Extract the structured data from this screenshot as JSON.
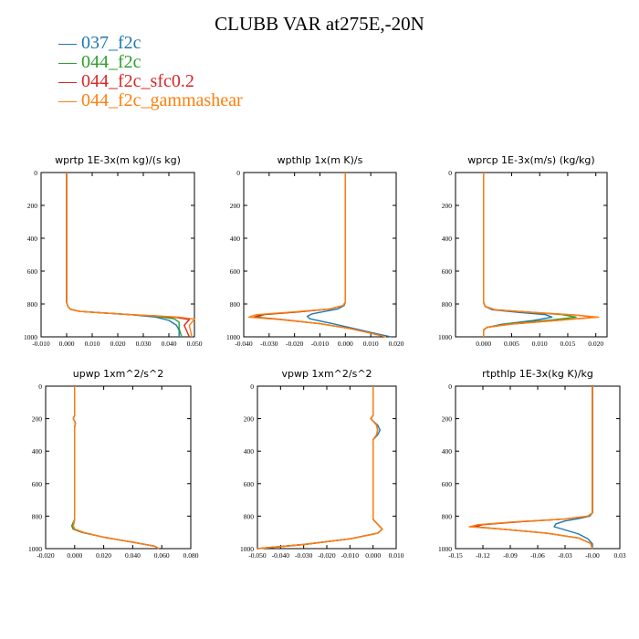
{
  "figure_title": "CLUBB VAR at275E,-20N",
  "legend": [
    {
      "label": "037_f2c",
      "color": "#1f77b4"
    },
    {
      "label": "044_f2c",
      "color": "#2ca02c"
    },
    {
      "label": "044_f2c_sfc0.2",
      "color": "#d62728"
    },
    {
      "label": "044_f2c_gammashear",
      "color": "#ff7f0e"
    }
  ],
  "chart_data": [
    {
      "type": "line",
      "title": "wprtp  1E-3x(m kg)/(s kg)",
      "xlim": [
        -0.01,
        0.05
      ],
      "ylim": [
        1000,
        0
      ],
      "xticks": [
        "-0.010",
        "0.000",
        "0.010",
        "0.020",
        "0.030",
        "0.040",
        "0.050"
      ],
      "xtick_values": [
        -0.01,
        0,
        0.01,
        0.02,
        0.03,
        0.04,
        0.05
      ],
      "yticks": [
        "0",
        "200",
        "400",
        "600",
        "800",
        "1000"
      ],
      "ytick_values": [
        0,
        200,
        400,
        600,
        800,
        1000
      ],
      "series": [
        {
          "name": "037_f2c",
          "color": "#1f77b4",
          "x": [
            0,
            0,
            0.0005,
            0.0015,
            0.005,
            0.015,
            0.025,
            0.035,
            0.04,
            0.043,
            0.044,
            0.044
          ],
          "y": [
            0,
            790,
            815,
            832,
            845,
            855,
            865,
            880,
            900,
            930,
            960,
            1000
          ]
        },
        {
          "name": "044_f2c",
          "color": "#2ca02c",
          "x": [
            0,
            0,
            0.0005,
            0.0015,
            0.005,
            0.015,
            0.025,
            0.035,
            0.042,
            0.044,
            0.044,
            0.045
          ],
          "y": [
            0,
            790,
            815,
            832,
            845,
            855,
            865,
            875,
            890,
            910,
            950,
            1000
          ]
        },
        {
          "name": "044_f2c_sfc0.2",
          "color": "#d62728",
          "x": [
            0,
            0,
            0.0005,
            0.0015,
            0.005,
            0.015,
            0.025,
            0.035,
            0.043,
            0.048,
            0.046,
            0.048
          ],
          "y": [
            0,
            790,
            815,
            832,
            845,
            855,
            865,
            873,
            882,
            895,
            930,
            1000
          ]
        },
        {
          "name": "044_f2c_gammashear",
          "color": "#ff7f0e",
          "x": [
            0,
            0,
            0.0005,
            0.0015,
            0.005,
            0.015,
            0.025,
            0.035,
            0.044,
            0.05,
            0.048,
            0.049
          ],
          "y": [
            0,
            790,
            815,
            832,
            845,
            855,
            865,
            872,
            880,
            892,
            930,
            1000
          ]
        }
      ]
    },
    {
      "type": "line",
      "title": "wpthlp  1x(m K)/s",
      "xlim": [
        -0.04,
        0.02
      ],
      "ylim": [
        1000,
        0
      ],
      "xticks": [
        "-0.040",
        "-0.030",
        "-0.020",
        "-0.010",
        "0.000",
        "0.010",
        "0.020"
      ],
      "xtick_values": [
        -0.04,
        -0.03,
        -0.02,
        -0.01,
        0,
        0.01,
        0.02
      ],
      "yticks": [
        "0",
        "200",
        "400",
        "600",
        "800",
        "1000"
      ],
      "ytick_values": [
        0,
        200,
        400,
        600,
        800,
        1000
      ],
      "series": [
        {
          "name": "037_f2c",
          "color": "#1f77b4",
          "x": [
            0,
            0,
            -0.0005,
            -0.003,
            -0.008,
            -0.013,
            -0.015,
            -0.014,
            -0.005,
            0.005,
            0.012,
            0.018
          ],
          "y": [
            0,
            790,
            810,
            830,
            845,
            860,
            875,
            890,
            920,
            955,
            980,
            1000
          ]
        },
        {
          "name": "044_f2c",
          "color": "#2ca02c",
          "x": [
            0,
            0,
            -0.001,
            -0.006,
            -0.018,
            -0.032,
            -0.035,
            -0.025,
            -0.01,
            0.002,
            0.01,
            0.016
          ],
          "y": [
            0,
            790,
            810,
            830,
            848,
            865,
            880,
            895,
            920,
            950,
            978,
            1000
          ]
        },
        {
          "name": "044_f2c_sfc0.2",
          "color": "#d62728",
          "x": [
            0,
            0,
            -0.001,
            -0.006,
            -0.018,
            -0.033,
            -0.036,
            -0.025,
            -0.01,
            0.002,
            0.01,
            0.016
          ],
          "y": [
            0,
            790,
            810,
            830,
            848,
            865,
            880,
            895,
            920,
            950,
            978,
            1000
          ]
        },
        {
          "name": "044_f2c_gammashear",
          "color": "#ff7f0e",
          "x": [
            0,
            0,
            -0.001,
            -0.006,
            -0.02,
            -0.035,
            -0.038,
            -0.026,
            -0.01,
            0.002,
            0.01,
            0.016
          ],
          "y": [
            0,
            790,
            810,
            830,
            848,
            865,
            880,
            895,
            920,
            950,
            978,
            1000
          ]
        }
      ]
    },
    {
      "type": "line",
      "title": "wprcp  1E-3x(m/s) (kg/kg)",
      "xlim": [
        -0.005,
        0.022
      ],
      "ylim": [
        1000,
        0
      ],
      "xticks": [
        "0.000",
        "0.005",
        "0.010",
        "0.015",
        "0.020"
      ],
      "xtick_values": [
        0,
        0.005,
        0.01,
        0.015,
        0.02
      ],
      "yticks": [
        "0",
        "200",
        "400",
        "600",
        "800",
        "1000"
      ],
      "ytick_values": [
        0,
        200,
        400,
        600,
        800,
        1000
      ],
      "series": [
        {
          "name": "037_f2c",
          "color": "#1f77b4",
          "x": [
            0,
            0,
            0.0003,
            0.0015,
            0.006,
            0.011,
            0.0122,
            0.009,
            0.003,
            0.0005,
            0,
            0
          ],
          "y": [
            0,
            790,
            815,
            835,
            850,
            865,
            880,
            900,
            925,
            945,
            960,
            1000
          ]
        },
        {
          "name": "044_f2c",
          "color": "#2ca02c",
          "x": [
            0,
            0,
            0.0003,
            0.002,
            0.008,
            0.014,
            0.0165,
            0.012,
            0.004,
            0.0006,
            0,
            0
          ],
          "y": [
            0,
            790,
            815,
            835,
            850,
            865,
            880,
            898,
            922,
            942,
            958,
            1000
          ]
        },
        {
          "name": "044_f2c_sfc0.2",
          "color": "#d62728",
          "x": [
            0,
            0,
            0.0003,
            0.002,
            0.008,
            0.016,
            0.02,
            0.014,
            0.005,
            0.0006,
            0,
            0
          ],
          "y": [
            0,
            790,
            815,
            835,
            850,
            866,
            880,
            897,
            922,
            942,
            958,
            1000
          ]
        },
        {
          "name": "044_f2c_gammashear",
          "color": "#ff7f0e",
          "x": [
            0,
            0,
            0.0003,
            0.002,
            0.008,
            0.016,
            0.0205,
            0.014,
            0.005,
            0.0006,
            0,
            0
          ],
          "y": [
            0,
            790,
            815,
            835,
            850,
            866,
            880,
            897,
            922,
            942,
            958,
            1000
          ]
        }
      ]
    },
    {
      "type": "line",
      "title": "upwp  1xm^2/s^2",
      "xlim": [
        -0.02,
        0.08
      ],
      "ylim": [
        1000,
        0
      ],
      "xticks": [
        "-0.020",
        "0.000",
        "0.020",
        "0.040",
        "0.060",
        "0.080"
      ],
      "xtick_values": [
        -0.02,
        0,
        0.02,
        0.04,
        0.06,
        0.08
      ],
      "yticks": [
        "0",
        "200",
        "400",
        "600",
        "800",
        "1000"
      ],
      "ytick_values": [
        0,
        200,
        400,
        600,
        800,
        1000
      ],
      "series": [
        {
          "name": "037_f2c",
          "color": "#1f77b4",
          "x": [
            0,
            0,
            -0.001,
            0,
            0.0005,
            0,
            0,
            -0.002,
            -0.001,
            0.005,
            0.02,
            0.04,
            0.055,
            0.058
          ],
          "y": [
            0,
            180,
            200,
            215,
            230,
            250,
            820,
            860,
            880,
            900,
            930,
            960,
            985,
            1000
          ]
        },
        {
          "name": "044_f2c",
          "color": "#2ca02c",
          "x": [
            0,
            0,
            -0.001,
            0,
            0.0005,
            0,
            0,
            -0.002,
            -0.001,
            0.005,
            0.02,
            0.04,
            0.055,
            0.058
          ],
          "y": [
            0,
            180,
            200,
            215,
            230,
            250,
            820,
            860,
            880,
            900,
            930,
            960,
            985,
            1000
          ]
        },
        {
          "name": "044_f2c_sfc0.2",
          "color": "#d62728",
          "x": [
            0,
            0,
            -0.001,
            0,
            0.0005,
            0,
            0,
            -0.001,
            0,
            0.006,
            0.02,
            0.04,
            0.055,
            0.058
          ],
          "y": [
            0,
            180,
            200,
            215,
            230,
            250,
            820,
            860,
            880,
            900,
            930,
            960,
            985,
            1000
          ]
        },
        {
          "name": "044_f2c_gammashear",
          "color": "#ff7f0e",
          "x": [
            0,
            0,
            -0.001,
            0,
            0.0005,
            0,
            0,
            -0.001,
            0,
            0.006,
            0.02,
            0.04,
            0.055,
            0.058
          ],
          "y": [
            0,
            180,
            200,
            215,
            230,
            250,
            820,
            860,
            880,
            900,
            930,
            960,
            985,
            1000
          ]
        }
      ]
    },
    {
      "type": "line",
      "title": "vpwp  1xm^2/s^2",
      "xlim": [
        -0.05,
        0.01
      ],
      "ylim": [
        1000,
        0
      ],
      "xticks": [
        "-0.050",
        "-0.040",
        "-0.030",
        "-0.020",
        "-0.010",
        "0.000",
        "0.010"
      ],
      "xtick_values": [
        -0.05,
        -0.04,
        -0.03,
        -0.02,
        -0.01,
        0,
        0.01
      ],
      "yticks": [
        "0",
        "200",
        "400",
        "600",
        "800",
        "1000"
      ],
      "ytick_values": [
        0,
        200,
        400,
        600,
        800,
        1000
      ],
      "series": [
        {
          "name": "037_f2c",
          "color": "#1f77b4",
          "x": [
            0,
            0,
            -0.001,
            0,
            0.002,
            0.003,
            0.002,
            0,
            0,
            0.002,
            0.004,
            0.002,
            -0.01,
            -0.03,
            -0.05
          ],
          "y": [
            0,
            180,
            200,
            215,
            240,
            270,
            300,
            330,
            820,
            850,
            880,
            905,
            940,
            975,
            1000
          ]
        },
        {
          "name": "044_f2c",
          "color": "#2ca02c",
          "x": [
            0,
            0,
            -0.001,
            0,
            0.0015,
            0.002,
            0.0015,
            0,
            0,
            0.002,
            0.004,
            0.002,
            -0.01,
            -0.03,
            -0.05
          ],
          "y": [
            0,
            180,
            200,
            215,
            240,
            270,
            300,
            330,
            820,
            850,
            880,
            905,
            940,
            975,
            1000
          ]
        },
        {
          "name": "044_f2c_sfc0.2",
          "color": "#d62728",
          "x": [
            0,
            0,
            -0.001,
            0,
            0.0015,
            0.002,
            0.0015,
            0,
            0,
            0.002,
            0.004,
            0.002,
            -0.01,
            -0.03,
            -0.05
          ],
          "y": [
            0,
            180,
            200,
            215,
            240,
            270,
            300,
            330,
            820,
            850,
            880,
            905,
            940,
            975,
            1000
          ]
        },
        {
          "name": "044_f2c_gammashear",
          "color": "#ff7f0e",
          "x": [
            0,
            0,
            -0.001,
            0,
            0.0015,
            0.002,
            0.0015,
            0,
            0,
            0.002,
            0.004,
            0.002,
            -0.01,
            -0.03,
            -0.05
          ],
          "y": [
            0,
            180,
            200,
            215,
            240,
            270,
            300,
            330,
            820,
            850,
            880,
            905,
            940,
            975,
            1000
          ]
        }
      ]
    },
    {
      "type": "line",
      "title": "rtpthlp  1E-3x(kg K)/kg",
      "xlim": [
        -0.15,
        0.03
      ],
      "ylim": [
        1000,
        0
      ],
      "xticks": [
        "-0.15",
        "-0.12",
        "-0.09",
        "-0.06",
        "-0.03",
        "-0.00",
        "0.03"
      ],
      "xtick_values": [
        -0.15,
        -0.12,
        -0.09,
        -0.06,
        -0.03,
        0,
        0.03
      ],
      "yticks": [
        "0",
        "200",
        "400",
        "600",
        "800",
        "1000"
      ],
      "ytick_values": [
        0,
        200,
        400,
        600,
        800,
        1000
      ],
      "series": [
        {
          "name": "037_f2c",
          "color": "#1f77b4",
          "x": [
            0,
            0,
            -0.003,
            -0.015,
            -0.03,
            -0.04,
            -0.042,
            -0.03,
            -0.015,
            -0.005,
            0,
            0
          ],
          "y": [
            0,
            780,
            800,
            815,
            830,
            848,
            865,
            885,
            910,
            940,
            970,
            1000
          ]
        },
        {
          "name": "044_f2c",
          "color": "#2ca02c",
          "x": [
            0,
            0,
            -0.005,
            -0.03,
            -0.08,
            -0.12,
            -0.13,
            -0.1,
            -0.05,
            -0.015,
            -0.002,
            0
          ],
          "y": [
            0,
            780,
            800,
            818,
            835,
            852,
            866,
            880,
            905,
            935,
            968,
            1000
          ]
        },
        {
          "name": "044_f2c_sfc0.2",
          "color": "#d62728",
          "x": [
            0,
            0,
            -0.005,
            -0.03,
            -0.08,
            -0.12,
            -0.13,
            -0.1,
            -0.05,
            -0.015,
            -0.002,
            0
          ],
          "y": [
            0,
            780,
            800,
            818,
            835,
            852,
            866,
            880,
            905,
            935,
            968,
            1000
          ]
        },
        {
          "name": "044_f2c_gammashear",
          "color": "#ff7f0e",
          "x": [
            0,
            0,
            -0.005,
            -0.03,
            -0.085,
            -0.125,
            -0.135,
            -0.1,
            -0.05,
            -0.015,
            -0.002,
            0
          ],
          "y": [
            0,
            780,
            800,
            818,
            835,
            852,
            866,
            880,
            905,
            935,
            968,
            1000
          ]
        }
      ]
    }
  ]
}
